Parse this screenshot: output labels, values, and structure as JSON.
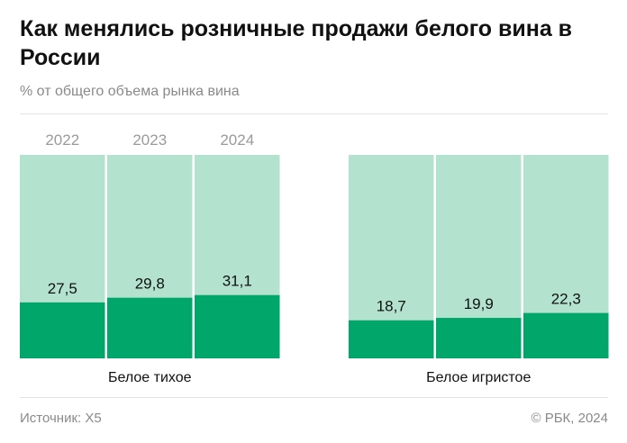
{
  "title": "Как менялись розничные продажи белого вина в России",
  "subtitle": "% от общего объема рынка вина",
  "source": "Источник: X5",
  "copyright": "© РБК, 2024",
  "colors": {
    "share": "#00a66a",
    "rest": "#b3e3cf"
  },
  "chart_data": [
    {
      "type": "bar",
      "stacked_percent": true,
      "title": "Белое тихое",
      "categories": [
        "2022",
        "2023",
        "2024"
      ],
      "values": [
        27.5,
        29.8,
        31.1
      ],
      "labels": [
        "27,5",
        "29,8",
        "31,1"
      ],
      "ylim": [
        0,
        100
      ]
    },
    {
      "type": "bar",
      "stacked_percent": true,
      "title": "Белое игристое",
      "categories": [
        "2022",
        "2023",
        "2024"
      ],
      "values": [
        18.7,
        19.9,
        22.3
      ],
      "labels": [
        "18,7",
        "19,9",
        "22,3"
      ],
      "ylim": [
        0,
        100
      ]
    }
  ]
}
